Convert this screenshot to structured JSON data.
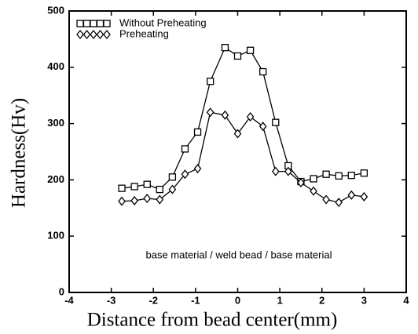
{
  "chart_data": {
    "type": "line",
    "xlabel": "Distance from bead center(mm)",
    "ylabel": "Hardness(Hv)",
    "annotation": "base material / weld bead / base material",
    "x": [
      -2.75,
      -2.45,
      -2.15,
      -1.85,
      -1.55,
      -1.25,
      -0.95,
      -0.65,
      -0.3,
      0,
      0.3,
      0.6,
      0.9,
      1.2,
      1.5,
      1.8,
      2.1,
      2.4,
      2.7,
      3.0
    ],
    "series": [
      {
        "name": "Without Preheating",
        "color": "#000000",
        "marker": "square",
        "values": [
          185,
          188,
          192,
          183,
          205,
          255,
          285,
          375,
          435,
          420,
          430,
          392,
          302,
          225,
          197,
          202,
          210,
          207,
          208,
          212
        ]
      },
      {
        "name": "Preheating",
        "color": "#000000",
        "marker": "diamond",
        "values": [
          162,
          163,
          167,
          165,
          183,
          210,
          220,
          320,
          315,
          282,
          312,
          295,
          215,
          215,
          195,
          180,
          165,
          160,
          173,
          170
        ]
      }
    ],
    "xlim": [
      -4,
      4
    ],
    "xticks": [
      -4,
      -3,
      -2,
      -1,
      0,
      1,
      2,
      3,
      4
    ],
    "ylim": [
      0,
      500
    ],
    "yticks": [
      0,
      100,
      200,
      300,
      400,
      500
    ],
    "legend": "upper left",
    "grid": false
  }
}
